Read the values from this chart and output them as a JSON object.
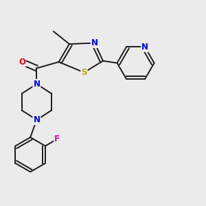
{
  "bg_color": "#ebebeb",
  "bond_color": "#1a1a1a",
  "bond_width": 1.4,
  "atom_colors": {
    "N": "#0000ee",
    "O": "#ee0000",
    "S": "#bbaa00",
    "F": "#dd00bb",
    "C": "#1a1a1a"
  },
  "font_size": 8.5,
  "title": ""
}
